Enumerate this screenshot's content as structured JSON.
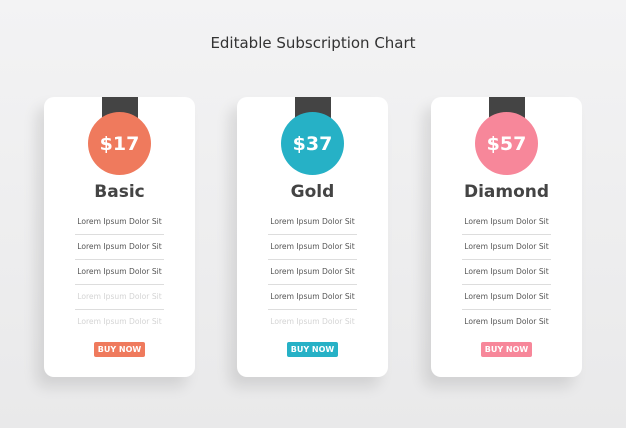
{
  "title": "Editable Subscription Chart",
  "plans": [
    {
      "price": "$17",
      "name": "Basic",
      "color": "#ef7a5d",
      "button": "BUY NOW",
      "features": [
        {
          "text": "Lorem Ipsum Dolor Sit",
          "enabled": true
        },
        {
          "text": "Lorem Ipsum Dolor Sit",
          "enabled": true
        },
        {
          "text": "Lorem Ipsum Dolor Sit",
          "enabled": true
        },
        {
          "text": "Lorem Ipsum Dolor Sit",
          "enabled": false
        },
        {
          "text": "Lorem Ipsum Dolor Sit",
          "enabled": false
        }
      ]
    },
    {
      "price": "$37",
      "name": "Gold",
      "color": "#26b1c6",
      "button": "BUY NOW",
      "features": [
        {
          "text": "Lorem Ipsum Dolor Sit",
          "enabled": true
        },
        {
          "text": "Lorem Ipsum Dolor Sit",
          "enabled": true
        },
        {
          "text": "Lorem Ipsum Dolor Sit",
          "enabled": true
        },
        {
          "text": "Lorem Ipsum Dolor Sit",
          "enabled": true
        },
        {
          "text": "Lorem Ipsum Dolor Sit",
          "enabled": false
        }
      ]
    },
    {
      "price": "$57",
      "name": "Diamond",
      "color": "#f7879a",
      "button": "BUY NOW",
      "features": [
        {
          "text": "Lorem Ipsum Dolor Sit",
          "enabled": true
        },
        {
          "text": "Lorem Ipsum Dolor Sit",
          "enabled": true
        },
        {
          "text": "Lorem Ipsum Dolor Sit",
          "enabled": true
        },
        {
          "text": "Lorem Ipsum Dolor Sit",
          "enabled": true
        },
        {
          "text": "Lorem Ipsum Dolor Sit",
          "enabled": true
        }
      ]
    }
  ]
}
